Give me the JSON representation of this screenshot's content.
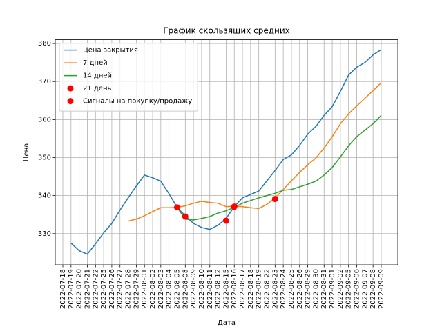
{
  "chart_data": {
    "type": "line",
    "title": "График скользящих средних",
    "x_label": "Дата",
    "y_label": "Цена",
    "categories": [
      "2022-07-18",
      "2022-07-19",
      "2022-07-20",
      "2022-07-21",
      "2022-07-22",
      "2022-07-25",
      "2022-07-26",
      "2022-07-27",
      "2022-07-28",
      "2022-07-29",
      "2022-08-01",
      "2022-08-02",
      "2022-08-03",
      "2022-08-04",
      "2022-08-05",
      "2022-08-08",
      "2022-08-09",
      "2022-08-10",
      "2022-08-11",
      "2022-08-12",
      "2022-08-15",
      "2022-08-16",
      "2022-08-17",
      "2022-08-18",
      "2022-08-19",
      "2022-08-22",
      "2022-08-23",
      "2022-08-24",
      "2022-08-25",
      "2022-08-26",
      "2022-08-29",
      "2022-08-30",
      "2022-08-31",
      "2022-09-01",
      "2022-09-02",
      "2022-09-05",
      "2022-09-06",
      "2022-09-07",
      "2022-09-08",
      "2022-09-09"
    ],
    "series": [
      {
        "name": "Цена закрытия",
        "color": "#1f77b4",
        "style": "line",
        "values": [
          null,
          327.5,
          325.5,
          324.6,
          327.3,
          330.2,
          332.7,
          336.2,
          339.4,
          342.5,
          345.4,
          344.7,
          343.8,
          340.5,
          336.9,
          334.7,
          332.7,
          331.6,
          331.1,
          332.2,
          334.0,
          337.1,
          339.4,
          340.3,
          341.2,
          343.9,
          346.6,
          349.5,
          350.7,
          353.2,
          356.2,
          358.2,
          361.1,
          363.4,
          367.4,
          371.7,
          373.8,
          375.0,
          377.0,
          378.4
        ]
      },
      {
        "name": "7 дней",
        "color": "#ff7f0e",
        "style": "line",
        "values": [
          null,
          null,
          null,
          null,
          null,
          null,
          null,
          null,
          333.3,
          333.8,
          334.7,
          335.8,
          336.8,
          336.8,
          336.9,
          337.3,
          338.0,
          338.5,
          338.2,
          338.0,
          337.1,
          337.2,
          337.1,
          336.8,
          336.6,
          337.7,
          339.4,
          341.6,
          343.9,
          346.1,
          348.1,
          349.9,
          352.5,
          355.5,
          358.9,
          361.5,
          363.6,
          365.6,
          367.6,
          369.7
        ]
      },
      {
        "name": "14 дней",
        "color": "#2ca02c",
        "style": "line",
        "values": [
          null,
          null,
          null,
          null,
          null,
          null,
          null,
          null,
          null,
          null,
          null,
          null,
          null,
          null,
          336.9,
          333.8,
          333.6,
          334.0,
          334.5,
          335.4,
          336.0,
          336.9,
          338.0,
          338.7,
          339.4,
          340.0,
          340.6,
          341.4,
          341.6,
          342.3,
          343.0,
          343.8,
          345.4,
          347.4,
          350.2,
          353.1,
          355.5,
          357.2,
          358.9,
          361.1
        ]
      },
      {
        "name": "21 день",
        "color": "#ff0000",
        "style": "markers",
        "values": [
          null,
          null,
          null,
          null,
          null,
          null,
          null,
          null,
          null,
          null,
          null,
          null,
          null,
          null,
          null,
          null,
          null,
          null,
          null,
          null,
          null,
          null,
          null,
          null,
          null,
          null,
          null,
          null,
          null,
          null,
          null,
          null,
          null,
          null,
          null,
          null,
          null,
          null,
          null,
          null
        ]
      },
      {
        "name": "Сигналы на покупку/продажу",
        "color": "#ff0000",
        "style": "markers",
        "values": [
          null,
          null,
          null,
          null,
          null,
          null,
          null,
          null,
          null,
          null,
          null,
          null,
          null,
          null,
          336.9,
          334.5,
          null,
          null,
          null,
          null,
          333.4,
          337.1,
          null,
          null,
          null,
          null,
          339.1,
          null,
          null,
          null,
          null,
          null,
          null,
          null,
          null,
          null,
          null,
          null,
          null,
          null
        ]
      }
    ],
    "ylim": [
      321.8,
      381.0
    ],
    "yticks": [
      330,
      340,
      350,
      360,
      370,
      380
    ],
    "grid": true,
    "legend": "upper left"
  }
}
